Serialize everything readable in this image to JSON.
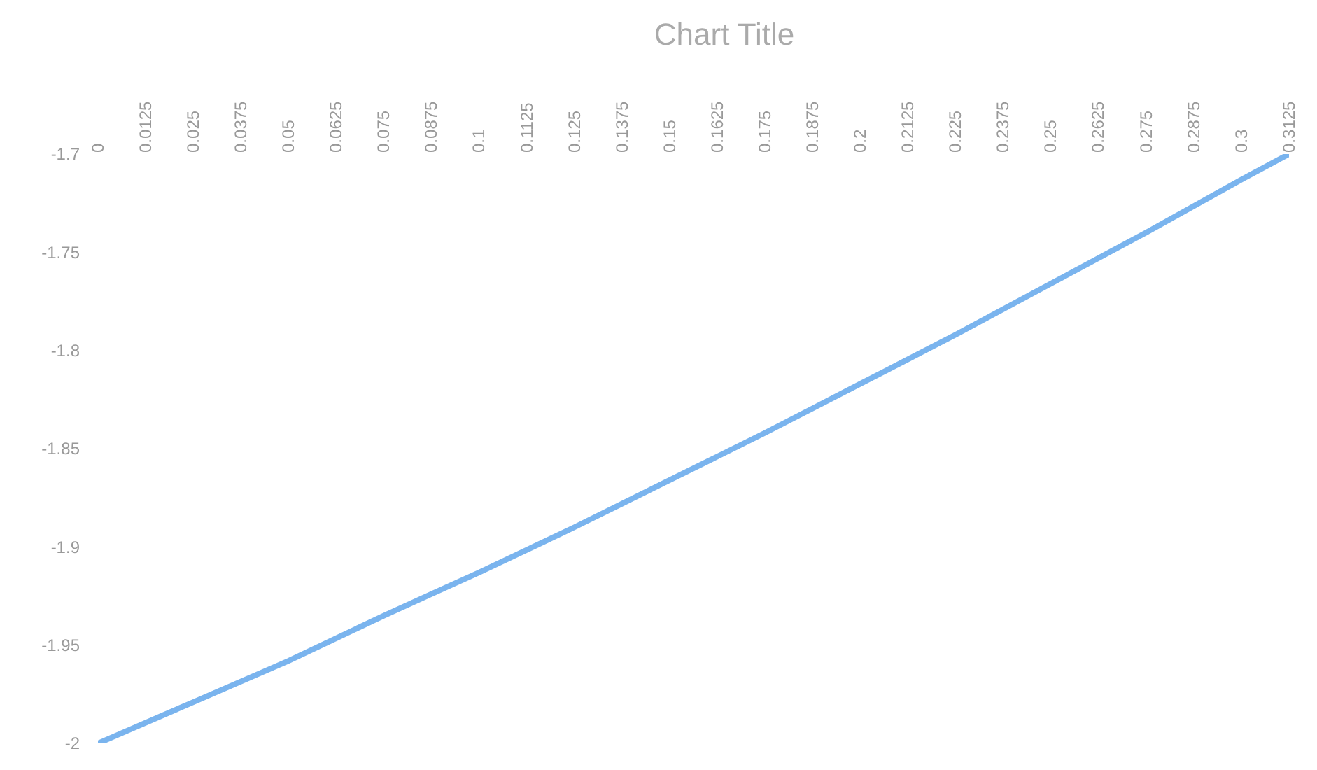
{
  "chart_data": {
    "type": "line",
    "title": "Chart Title",
    "x": [
      0,
      0.025,
      0.05,
      0.075,
      0.1,
      0.125,
      0.15,
      0.175,
      0.2,
      0.225,
      0.25,
      0.275,
      0.3,
      0.3125
    ],
    "series": [
      {
        "color": "#7ab4ee",
        "values": [
          -2.0,
          -1.979,
          -1.958,
          -1.935,
          -1.913,
          -1.89,
          -1.866,
          -1.842,
          -1.817,
          -1.792,
          -1.766,
          -1.74,
          -1.713,
          -1.7
        ]
      }
    ],
    "xlim": [
      0,
      0.3125
    ],
    "ylim": [
      -2,
      -1.7
    ],
    "xticks": [
      0,
      0.0125,
      0.025,
      0.0375,
      0.05,
      0.0625,
      0.075,
      0.0875,
      0.1,
      0.1125,
      0.125,
      0.1375,
      0.15,
      0.1625,
      0.175,
      0.1875,
      0.2,
      0.2125,
      0.225,
      0.2375,
      0.25,
      0.2625,
      0.275,
      0.2875,
      0.3,
      0.3125
    ],
    "yticks": [
      -2,
      -1.95,
      -1.9,
      -1.85,
      -1.8,
      -1.75,
      -1.7
    ],
    "line_style": "solid"
  }
}
